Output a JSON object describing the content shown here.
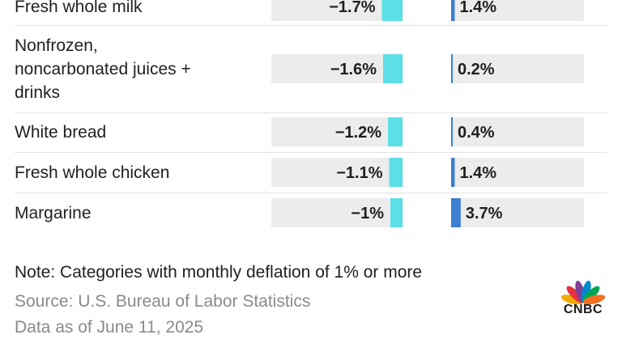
{
  "chart_data": {
    "type": "bar",
    "categories": [
      "Fresh whole milk",
      "Nonfrozen, noncarbonated juices + drinks",
      "White bread",
      "Fresh whole chicken",
      "Margarine"
    ],
    "category_lines": [
      [
        "Fresh whole milk"
      ],
      [
        "Nonfrozen,",
        "noncarbonated juices +",
        "drinks"
      ],
      [
        "White bread"
      ],
      [
        "Fresh whole chicken"
      ],
      [
        "Margarine"
      ]
    ],
    "series": [
      {
        "values": [
          -1.7,
          -1.6,
          -1.2,
          -1.1,
          -1.0
        ],
        "labels": [
          "−1.7%",
          "−1.6%",
          "−1.2%",
          "−1.1%",
          "−1%"
        ],
        "color": "#5ddfe8"
      },
      {
        "values": [
          1.4,
          0.2,
          0.4,
          1.4,
          3.7
        ],
        "labels": [
          "1.4%",
          "0.2%",
          "0.4%",
          "1.4%",
          "3.7%"
        ],
        "color": "#3a7fd0"
      }
    ]
  },
  "note": "Note: Categories with monthly deflation of 1% or more",
  "source": "Source: U.S. Bureau of Labor Statistics",
  "as_of": "Data as of June 11, 2025",
  "logo": {
    "text": "CNBC",
    "colors": [
      "#f2a900",
      "#e5323e",
      "#7d3f98",
      "#0089cf",
      "#00a651",
      "#f36f21"
    ]
  }
}
